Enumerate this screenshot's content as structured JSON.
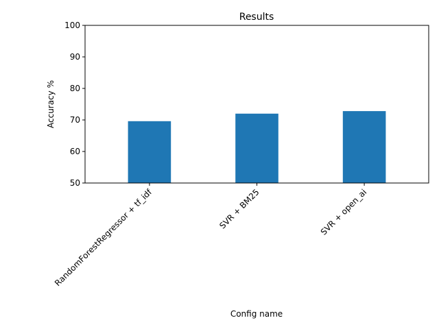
{
  "chart_data": {
    "type": "bar",
    "title": "Results",
    "xlabel": "Config name",
    "ylabel": "Accuracy %",
    "categories": [
      "RandomForestRegressor + tf_idf",
      "SVR + BM25",
      "SVR + open_ai"
    ],
    "values": [
      69.6,
      72.0,
      72.8
    ],
    "ylim": [
      50,
      100
    ],
    "yticks": [
      50,
      60,
      70,
      80,
      90,
      100
    ],
    "grid": false,
    "legend": "none",
    "bar_color": "#1f77b4"
  }
}
